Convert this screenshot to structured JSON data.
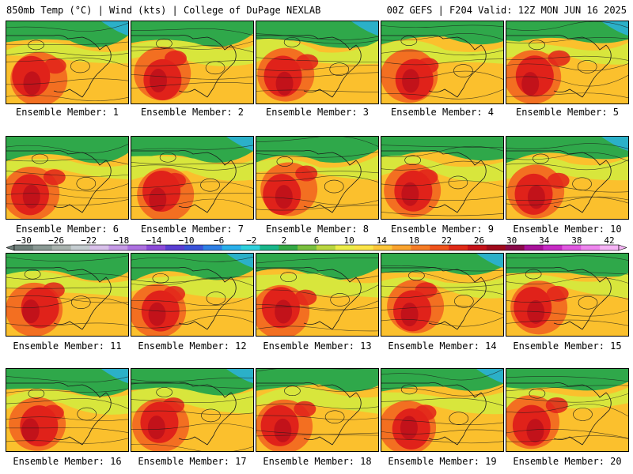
{
  "header": {
    "left": "850mb Temp (°C) | Wind (kts) | College of DuPage NEXLAB",
    "right": "00Z GEFS | F204 Valid: 12Z MON JUN 16 2025"
  },
  "colorbar": {
    "tick_labels": [
      "−30",
      "−26",
      "−22",
      "−18",
      "−14",
      "−10",
      "−6",
      "−2",
      "2",
      "6",
      "10",
      "14",
      "18",
      "22",
      "26",
      "30",
      "34",
      "38",
      "42"
    ],
    "colors": [
      "#6f7f7a",
      "#8a9994",
      "#a8b2ae",
      "#c4ccd0",
      "#d8c0ea",
      "#c59ae6",
      "#ad71e0",
      "#8c4bd8",
      "#5a3fd2",
      "#3b53d8",
      "#2f80e4",
      "#2ab0ea",
      "#2fd0dc",
      "#19b68a",
      "#33a845",
      "#79bf3e",
      "#b9d640",
      "#eced4a",
      "#fbe449",
      "#fcc63a",
      "#f9a32f",
      "#f57c25",
      "#ef531c",
      "#df2a17",
      "#c51219",
      "#a00a1c",
      "#8a0a4a",
      "#a8129a",
      "#c62ac4",
      "#e057e0",
      "#ee86ee",
      "#f6b4f6"
    ]
  },
  "members": [
    {
      "label": "Ensemble Member: 1"
    },
    {
      "label": "Ensemble Member: 2"
    },
    {
      "label": "Ensemble Member: 3"
    },
    {
      "label": "Ensemble Member: 4"
    },
    {
      "label": "Ensemble Member: 5"
    },
    {
      "label": "Ensemble Member: 6"
    },
    {
      "label": "Ensemble Member: 7"
    },
    {
      "label": "Ensemble Member: 8"
    },
    {
      "label": "Ensemble Member: 9"
    },
    {
      "label": "Ensemble Member: 10"
    },
    {
      "label": "Ensemble Member: 11"
    },
    {
      "label": "Ensemble Member: 12"
    },
    {
      "label": "Ensemble Member: 13"
    },
    {
      "label": "Ensemble Member: 14"
    },
    {
      "label": "Ensemble Member: 15"
    },
    {
      "label": "Ensemble Member: 16"
    },
    {
      "label": "Ensemble Member: 17"
    },
    {
      "label": "Ensemble Member: 18"
    },
    {
      "label": "Ensemble Member: 19"
    },
    {
      "label": "Ensemble Member: 20"
    }
  ],
  "map_colors": {
    "cool_north": "#2fa84a",
    "mild": "#d8e63c",
    "warm": "#fbc02d",
    "hot": "#f36f21",
    "very_hot": "#e0221a",
    "core": "#c2121a",
    "ocean_cold": "#2bb0c8",
    "contour": "#1a1a1a"
  }
}
